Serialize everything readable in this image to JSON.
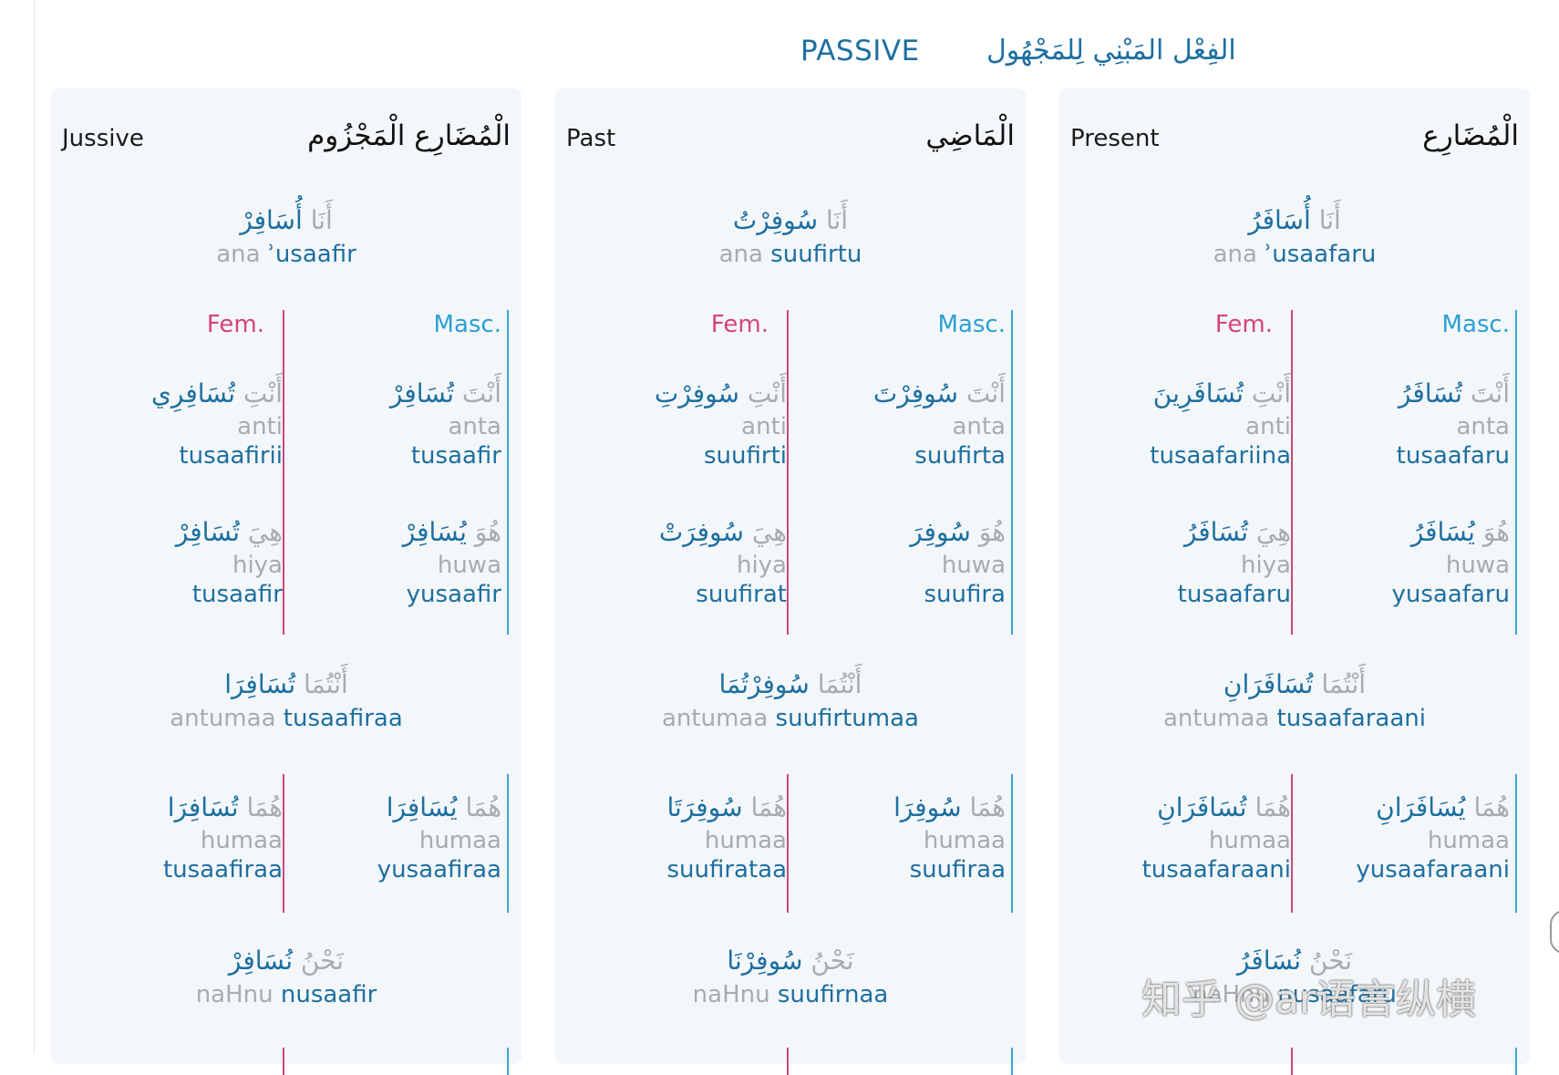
{
  "header": {
    "title_en": "PASSIVE",
    "title_ar": "الفِعْل المَبْنِي لِلمَجْهُول"
  },
  "gender_labels": {
    "masc": "Masc.",
    "fem": "Fem."
  },
  "panels": [
    {
      "title_en": "Jussive",
      "title_ar": "الْمُضَارِع الْمَجْزُوم",
      "ana": {
        "pron_ar": "أَنَا",
        "verb_ar": "أُسَافِرْ",
        "pron_tr": "ana",
        "verb_tr": "ʾusaafir"
      },
      "anta": {
        "pron_ar": "أَنْتَ",
        "verb_ar": "تُسَافِرْ",
        "pron_tr": "anta",
        "verb_tr": "tusaafir"
      },
      "anti": {
        "pron_ar": "أَنْتِ",
        "verb_ar": "تُسَافِرِي",
        "pron_tr": "anti",
        "verb_tr": "tusaafirii"
      },
      "huwa": {
        "pron_ar": "هُوَ",
        "verb_ar": "يُسَافِرْ",
        "pron_tr": "huwa",
        "verb_tr": "yusaafir"
      },
      "hiya": {
        "pron_ar": "هِيَ",
        "verb_ar": "تُسَافِرْ",
        "pron_tr": "hiya",
        "verb_tr": "tusaafir"
      },
      "antumaa": {
        "pron_ar": "أَنْتُمَا",
        "verb_ar": "تُسَافِرَا",
        "pron_tr": "antumaa",
        "verb_tr": "tusaafiraa"
      },
      "humaa_m": {
        "pron_ar": "هُمَا",
        "verb_ar": "يُسَافِرَا",
        "pron_tr": "humaa",
        "verb_tr": "yusaafiraa"
      },
      "humaa_f": {
        "pron_ar": "هُمَا",
        "verb_ar": "تُسَافِرَا",
        "pron_tr": "humaa",
        "verb_tr": "tusaafiraa"
      },
      "nahnu": {
        "pron_ar": "نَحْنُ",
        "verb_ar": "نُسَافِرْ",
        "pron_tr": "naHnu",
        "verb_tr": "nusaafir"
      }
    },
    {
      "title_en": "Past",
      "title_ar": "الْمَاضِي",
      "ana": {
        "pron_ar": "أَنَا",
        "verb_ar": "سُوفِرْتُ",
        "pron_tr": "ana",
        "verb_tr": "suufirtu"
      },
      "anta": {
        "pron_ar": "أَنْتَ",
        "verb_ar": "سُوفِرْتَ",
        "pron_tr": "anta",
        "verb_tr": "suufirta"
      },
      "anti": {
        "pron_ar": "أَنْتِ",
        "verb_ar": "سُوفِرْتِ",
        "pron_tr": "anti",
        "verb_tr": "suufirti"
      },
      "huwa": {
        "pron_ar": "هُوَ",
        "verb_ar": "سُوفِرَ",
        "pron_tr": "huwa",
        "verb_tr": "suufira"
      },
      "hiya": {
        "pron_ar": "هِيَ",
        "verb_ar": "سُوفِرَتْ",
        "pron_tr": "hiya",
        "verb_tr": "suufirat"
      },
      "antumaa": {
        "pron_ar": "أَنْتُمَا",
        "verb_ar": "سُوفِرْتُمَا",
        "pron_tr": "antumaa",
        "verb_tr": "suufirtumaa"
      },
      "humaa_m": {
        "pron_ar": "هُمَا",
        "verb_ar": "سُوفِرَا",
        "pron_tr": "humaa",
        "verb_tr": "suufiraa"
      },
      "humaa_f": {
        "pron_ar": "هُمَا",
        "verb_ar": "سُوفِرَتَا",
        "pron_tr": "humaa",
        "verb_tr": "suufirataa"
      },
      "nahnu": {
        "pron_ar": "نَحْنُ",
        "verb_ar": "سُوفِرْنَا",
        "pron_tr": "naHnu",
        "verb_tr": "suufirnaa"
      }
    },
    {
      "title_en": "Present",
      "title_ar": "الْمُضَارِع",
      "ana": {
        "pron_ar": "أَنَا",
        "verb_ar": "أُسَافَرُ",
        "pron_tr": "ana",
        "verb_tr": "ʾusaafaru"
      },
      "anta": {
        "pron_ar": "أَنْتَ",
        "verb_ar": "تُسَافَرُ",
        "pron_tr": "anta",
        "verb_tr": "tusaafaru"
      },
      "anti": {
        "pron_ar": "أَنْتِ",
        "verb_ar": "تُسَافَرِينَ",
        "pron_tr": "anti",
        "verb_tr": "tusaafariina"
      },
      "huwa": {
        "pron_ar": "هُوَ",
        "verb_ar": "يُسَافَرُ",
        "pron_tr": "huwa",
        "verb_tr": "yusaafaru"
      },
      "hiya": {
        "pron_ar": "هِيَ",
        "verb_ar": "تُسَافَرُ",
        "pron_tr": "hiya",
        "verb_tr": "tusaafaru"
      },
      "antumaa": {
        "pron_ar": "أَنْتُمَا",
        "verb_ar": "تُسَافَرَانِ",
        "pron_tr": "antumaa",
        "verb_tr": "tusaafaraani"
      },
      "humaa_m": {
        "pron_ar": "هُمَا",
        "verb_ar": "يُسَافَرَانِ",
        "pron_tr": "humaa",
        "verb_tr": "yusaafaraani"
      },
      "humaa_f": {
        "pron_ar": "هُمَا",
        "verb_ar": "تُسَافَرَانِ",
        "pron_tr": "humaa",
        "verb_tr": "tusaafaraani"
      },
      "nahnu": {
        "pron_ar": "نَحْنُ",
        "verb_ar": "نُسَافَرُ",
        "pron_tr": "naHnu",
        "verb_tr": "nusaafaru"
      }
    }
  ],
  "watermark": "知乎 @ar语言纵横",
  "colors": {
    "accent": "#1d6fa0",
    "masc": "#2aa0d4",
    "fem": "#d6427a",
    "muted": "#a9abae",
    "panel_bg": "#f4f7fa"
  }
}
